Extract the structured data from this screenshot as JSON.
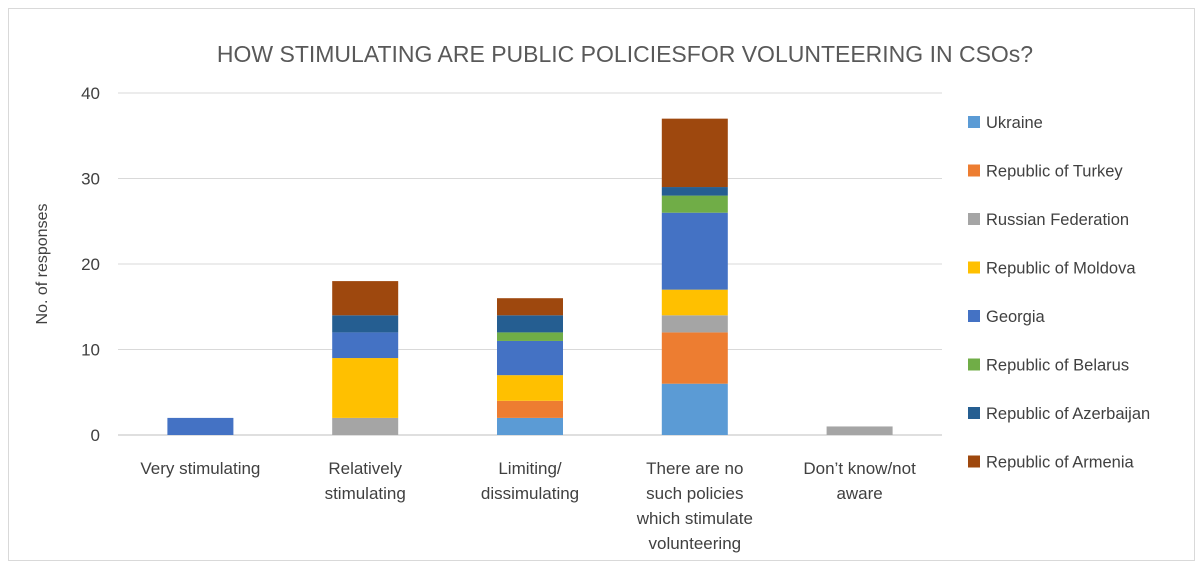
{
  "chart_data": {
    "type": "bar",
    "stacked": true,
    "title": "HOW STIMULATING ARE PUBLIC POLICIESFOR VOLUNTEERING IN CSOs?",
    "xlabel": "",
    "ylabel": "No. of responses",
    "ylim": [
      0,
      40
    ],
    "yticks": [
      0,
      10,
      20,
      30,
      40
    ],
    "grid": true,
    "legend_position": "right",
    "categories": [
      [
        "Very stimulating"
      ],
      [
        "Relatively",
        "stimulating"
      ],
      [
        "Limiting/",
        "dissimulating"
      ],
      [
        "There are no",
        "such policies",
        "which stimulate",
        "volunteering"
      ],
      [
        "Don’t know/not",
        "aware"
      ]
    ],
    "series": [
      {
        "name": "Ukraine",
        "color": "#5B9BD5",
        "values": [
          0,
          0,
          2,
          6,
          0
        ]
      },
      {
        "name": "Republic of Turkey",
        "color": "#ED7D31",
        "values": [
          0,
          0,
          2,
          6,
          0
        ]
      },
      {
        "name": "Russian Federation",
        "color": "#A5A5A5",
        "values": [
          0,
          2,
          0,
          2,
          1
        ]
      },
      {
        "name": "Republic of Moldova",
        "color": "#FFC000",
        "values": [
          0,
          7,
          3,
          3,
          0
        ]
      },
      {
        "name": "Georgia",
        "color": "#4472C4",
        "values": [
          2,
          3,
          4,
          9,
          0
        ]
      },
      {
        "name": "Republic of Belarus",
        "color": "#70AD47",
        "values": [
          0,
          0,
          1,
          2,
          0
        ]
      },
      {
        "name": "Republic of Azerbaijan",
        "color": "#255E91",
        "values": [
          0,
          2,
          2,
          1,
          0
        ]
      },
      {
        "name": "Republic of Armenia",
        "color": "#9E480E",
        "values": [
          0,
          4,
          2,
          8,
          0
        ]
      }
    ]
  }
}
